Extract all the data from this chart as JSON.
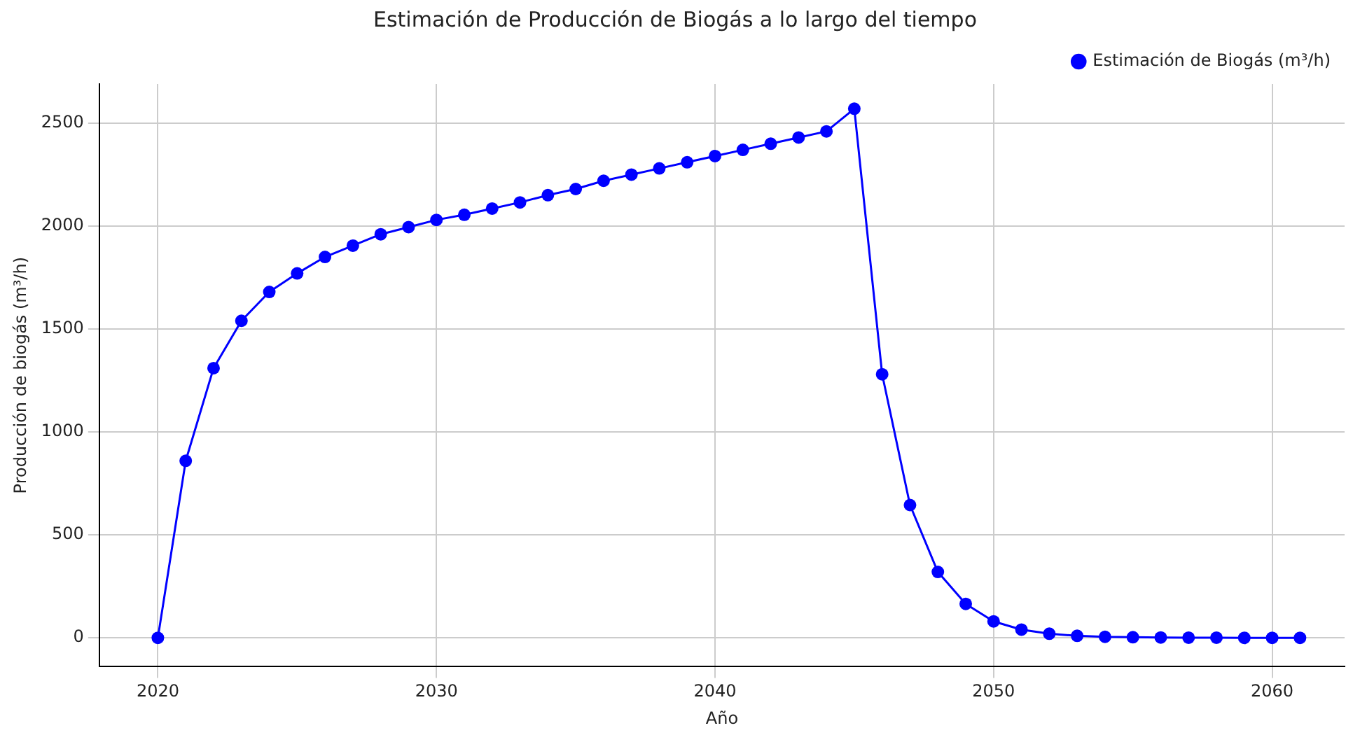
{
  "chart_data": {
    "type": "line",
    "title": "Estimación de Producción de Biogás a lo largo del tiempo",
    "xlabel": "Año",
    "ylabel": "Producción de biogás (m³/h)",
    "x": [
      2020,
      2021,
      2022,
      2023,
      2024,
      2025,
      2026,
      2027,
      2028,
      2029,
      2030,
      2031,
      2032,
      2033,
      2034,
      2035,
      2036,
      2037,
      2038,
      2039,
      2040,
      2041,
      2042,
      2043,
      2044,
      2045,
      2046,
      2047,
      2048,
      2049,
      2050,
      2051,
      2052,
      2053,
      2054,
      2055,
      2056,
      2057,
      2058,
      2059,
      2060,
      2061
    ],
    "series": [
      {
        "name": "Estimación de Biogás (m³/h)",
        "color": "#0000ff",
        "values": [
          0,
          860,
          1310,
          1540,
          1680,
          1770,
          1850,
          1905,
          1960,
          1995,
          2030,
          2055,
          2085,
          2115,
          2150,
          2180,
          2220,
          2250,
          2280,
          2310,
          2340,
          2370,
          2400,
          2430,
          2460,
          2570,
          1280,
          645,
          320,
          165,
          80,
          40,
          20,
          10,
          5,
          3,
          2,
          1,
          1,
          0,
          0,
          0
        ]
      }
    ],
    "xlim": [
      2017.9,
      2062.6
    ],
    "xticks": [
      2020,
      2030,
      2040,
      2050,
      2060
    ],
    "ylim": [
      -140,
      2690
    ],
    "yticks": [
      0,
      500,
      1000,
      1500,
      2000,
      2500
    ],
    "grid": true,
    "legend": "top right",
    "marker": "circle",
    "line_style": "solid"
  }
}
